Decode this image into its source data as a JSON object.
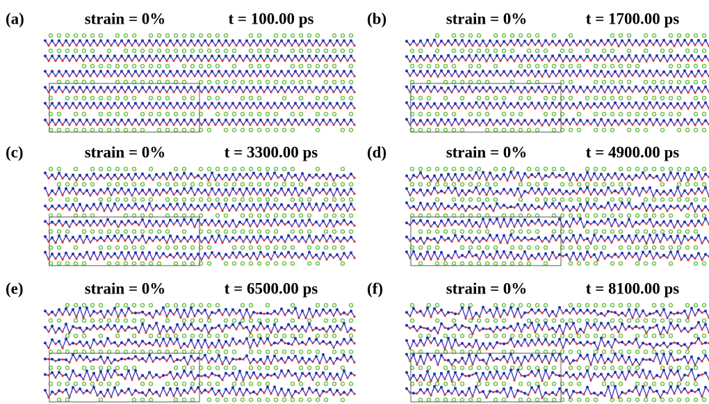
{
  "panels": [
    {
      "label": "(a)",
      "strain": "strain = 0%",
      "time": "t = 100.00 ps"
    },
    {
      "label": "(b)",
      "strain": "strain = 0%",
      "time": "t = 1700.00 ps"
    },
    {
      "label": "(c)",
      "strain": "strain = 0%",
      "time": "t = 3300.00 ps"
    },
    {
      "label": "(d)",
      "strain": "strain = 0%",
      "time": "t = 4900.00 ps"
    },
    {
      "label": "(e)",
      "strain": "strain = 0%",
      "time": "t = 6500.00 ps"
    },
    {
      "label": "(f)",
      "strain": "strain = 0%",
      "time": "t = 8100.00 ps"
    }
  ]
}
